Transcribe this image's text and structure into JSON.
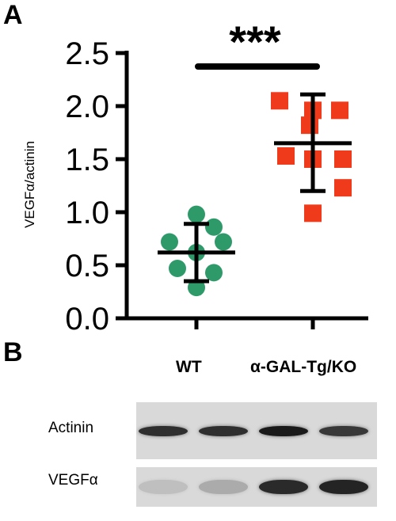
{
  "panels": {
    "a": "A",
    "b": "B"
  },
  "chart_data": {
    "type": "scatter",
    "ylabel": "VEGFα/actinin",
    "ylim": [
      0.0,
      2.5
    ],
    "yticks": [
      "0.0",
      "0.5",
      "1.0",
      "1.5",
      "2.0",
      "2.5"
    ],
    "categories": [
      "WT",
      "α-GAL-Tg/KO"
    ],
    "series": [
      {
        "category": "WT",
        "marker": "circle",
        "color": "#2e9a6a",
        "values": [
          0.98,
          0.86,
          0.72,
          0.72,
          0.62,
          0.47,
          0.43,
          0.29
        ],
        "mean": 0.62,
        "sd_low": 0.35,
        "sd_high": 0.89
      },
      {
        "category": "α-GAL-Tg/KO",
        "marker": "square",
        "color": "#f03a1c",
        "values": [
          2.05,
          1.96,
          1.96,
          1.82,
          1.53,
          1.5,
          1.5,
          1.23,
          0.99
        ],
        "mean": 1.65,
        "sd_low": 1.2,
        "sd_high": 2.11
      }
    ],
    "significance": "***"
  },
  "blot": {
    "lanes_header": [
      "WT",
      "α-GAL-Tg/KO"
    ],
    "rows": [
      {
        "label": "Actinin",
        "intensities": [
          0.82,
          0.82,
          0.92,
          0.78
        ]
      },
      {
        "label": "VEGFα",
        "intensities": [
          0.12,
          0.22,
          0.85,
          0.88
        ]
      }
    ]
  }
}
